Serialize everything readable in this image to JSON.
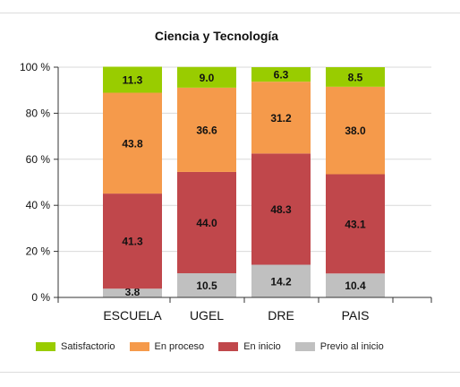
{
  "chart_data": {
    "type": "bar",
    "stacked": true,
    "title": "Ciencia y Tecnología",
    "categories": [
      "ESCUELA",
      "UGEL",
      "DRE",
      "PAIS"
    ],
    "series": [
      {
        "name": "Previo al inicio",
        "color": "#c0c0c0",
        "values": [
          3.8,
          10.5,
          14.2,
          10.4
        ]
      },
      {
        "name": "En inicio",
        "color": "#c0474b",
        "values": [
          41.3,
          44.0,
          48.3,
          43.1
        ]
      },
      {
        "name": "En proceso",
        "color": "#f59a4b",
        "values": [
          43.8,
          36.6,
          31.2,
          38.0
        ]
      },
      {
        "name": "Satisfactorio",
        "color": "#99cc00",
        "values": [
          11.3,
          9.0,
          6.3,
          8.5
        ]
      }
    ],
    "data_labels": [
      [
        "3.8",
        "10.5",
        "14.2",
        "10.4"
      ],
      [
        "41.3",
        "44.0",
        "48.3",
        "43.1"
      ],
      [
        "43.8",
        "36.6",
        "31.2",
        "38.0"
      ],
      [
        "11.3",
        "9.0",
        "6.3",
        "8.5"
      ]
    ],
    "yticks": [
      0,
      20,
      40,
      60,
      80,
      100
    ],
    "ytick_labels": [
      "0 %",
      "20 %",
      "40 %",
      "60 %",
      "80 %",
      "100 %"
    ],
    "ylim": [
      0,
      100
    ],
    "grid": true,
    "legend_position": "bottom",
    "legend": [
      {
        "label": "Satisfactorio",
        "color": "#99cc00"
      },
      {
        "label": "En proceso",
        "color": "#f59a4b"
      },
      {
        "label": "En inicio",
        "color": "#c0474b"
      },
      {
        "label": "Previo al inicio",
        "color": "#c0c0c0"
      }
    ]
  }
}
